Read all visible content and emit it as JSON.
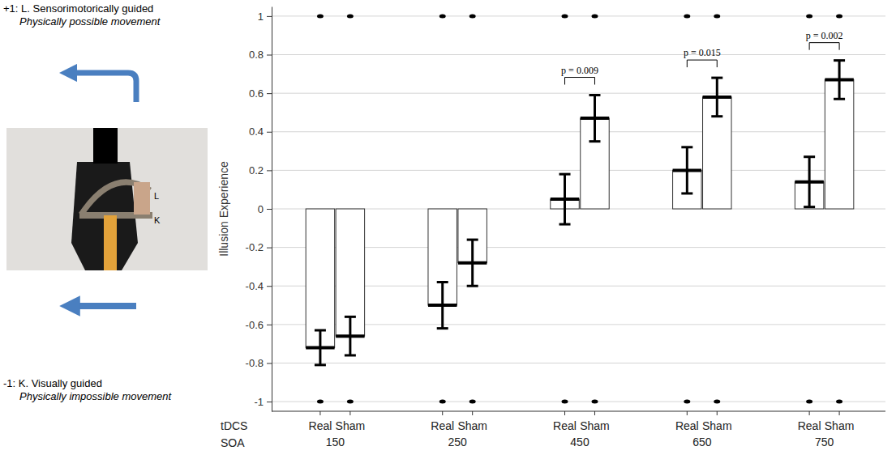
{
  "chart_data": {
    "type": "bar",
    "y_label": "Illusion Experience",
    "series_label": "tDCS",
    "category_label": "SOA",
    "categories": [
      150,
      250,
      450,
      650,
      750
    ],
    "series": [
      {
        "name": "Real",
        "color": "#ffffff",
        "values": [
          -0.72,
          -0.5,
          0.05,
          0.2,
          0.14
        ],
        "errors": [
          0.09,
          0.12,
          0.13,
          0.12,
          0.13
        ]
      },
      {
        "name": "Sham",
        "color": "#ffffff",
        "values": [
          -0.66,
          -0.28,
          0.47,
          0.58,
          0.67
        ],
        "errors": [
          0.1,
          0.12,
          0.12,
          0.1,
          0.1
        ]
      }
    ],
    "individual_responses": [
      -1,
      1
    ],
    "ylim": [
      -1.05,
      1.05
    ],
    "yticks": [
      -1,
      -0.8,
      -0.6,
      -0.4,
      -0.2,
      0,
      0.2,
      0.4,
      0.6,
      0.8,
      1
    ],
    "grid": true,
    "annotations": [
      {
        "category": 450,
        "text": "p = 0.009"
      },
      {
        "category": 650,
        "text": "p = 0.015"
      },
      {
        "category": 750,
        "text": "p = 0.002"
      }
    ]
  },
  "side_panel": {
    "top_label": "+1: L. Sensorimotorically guided",
    "top_detail": "Physically possible movement",
    "bottom_label": "-1: K. Visually guided",
    "bottom_detail": "Physically impossible movement",
    "photo_labels": [
      "L",
      "K"
    ]
  }
}
